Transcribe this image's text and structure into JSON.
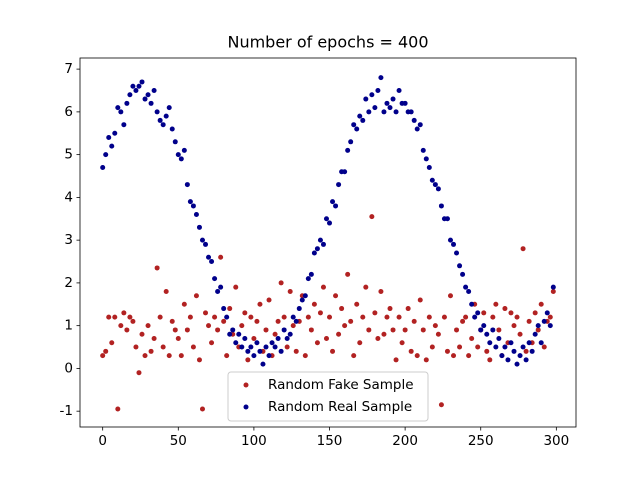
{
  "chart_data": {
    "type": "scatter",
    "title": "Number of epochs = 400",
    "x": [
      0,
      2,
      4,
      6,
      8,
      10,
      12,
      14,
      16,
      18,
      20,
      22,
      24,
      26,
      28,
      30,
      32,
      34,
      36,
      38,
      40,
      42,
      44,
      46,
      48,
      50,
      52,
      54,
      56,
      58,
      60,
      62,
      64,
      66,
      68,
      70,
      72,
      74,
      76,
      78,
      80,
      82,
      84,
      86,
      88,
      90,
      92,
      94,
      96,
      98,
      100,
      102,
      104,
      106,
      108,
      110,
      112,
      114,
      116,
      118,
      120,
      122,
      124,
      126,
      128,
      130,
      132,
      134,
      136,
      138,
      140,
      142,
      144,
      146,
      148,
      150,
      152,
      154,
      156,
      158,
      160,
      162,
      164,
      166,
      168,
      170,
      172,
      174,
      176,
      178,
      180,
      182,
      184,
      186,
      188,
      190,
      192,
      194,
      196,
      198,
      200,
      202,
      204,
      206,
      208,
      210,
      212,
      214,
      216,
      218,
      220,
      222,
      224,
      226,
      228,
      230,
      232,
      234,
      236,
      238,
      240,
      242,
      244,
      246,
      248,
      250,
      252,
      254,
      256,
      258,
      260,
      262,
      264,
      266,
      268,
      270,
      272,
      274,
      276,
      278,
      280,
      282,
      284,
      286,
      288,
      290,
      292,
      294,
      296,
      298
    ],
    "series": [
      {
        "name": "Random Fake Sample",
        "color": "#b22222",
        "values": [
          0.3,
          0.4,
          1.2,
          0.6,
          1.2,
          -0.95,
          1.0,
          1.3,
          0.9,
          1.2,
          1.1,
          0.5,
          -0.1,
          0.8,
          0.3,
          1.0,
          0.4,
          0.7,
          2.35,
          1.2,
          0.5,
          1.8,
          0.3,
          1.1,
          0.9,
          0.7,
          0.3,
          1.5,
          0.9,
          1.2,
          0.5,
          1.7,
          0.2,
          -0.95,
          1.3,
          1.0,
          0.6,
          1.2,
          0.9,
          2.6,
          1.1,
          0.3,
          1.4,
          0.8,
          1.9,
          0.5,
          1.0,
          1.3,
          0.2,
          1.2,
          0.7,
          1.1,
          1.5,
          0.4,
          0.9,
          1.6,
          0.3,
          0.8,
          1.1,
          2.0,
          1.2,
          0.5,
          1.8,
          1.0,
          0.4,
          1.1,
          1.7,
          0.3,
          1.2,
          0.9,
          1.5,
          0.6,
          1.3,
          1.9,
          0.7,
          1.2,
          0.4,
          1.7,
          0.8,
          1.4,
          1.0,
          2.2,
          1.1,
          0.3,
          1.5,
          0.6,
          1.2,
          1.9,
          0.9,
          3.55,
          1.3,
          0.7,
          1.8,
          0.8,
          1.2,
          1.4,
          0.9,
          0.2,
          1.2,
          0.6,
          0.9,
          1.4,
          0.4,
          1.1,
          0.3,
          1.6,
          0.9,
          0.2,
          1.2,
          0.5,
          1.0,
          0.8,
          -0.85,
          1.2,
          0.4,
          1.7,
          0.3,
          0.9,
          0.5,
          1.1,
          1.2,
          0.3,
          0.7,
          1.5,
          0.5,
          0.9,
          1.3,
          0.4,
          0.2,
          1.2,
          1.5,
          0.9,
          0.3,
          1.4,
          0.6,
          1.3,
          1.0,
          1.2,
          0.8,
          2.8,
          0.4,
          1.1,
          0.6,
          1.3,
          0.9,
          1.5,
          0.5,
          1.1,
          1.2,
          1.8
        ]
      },
      {
        "name": "Random Real Sample",
        "color": "#00008b",
        "values": [
          4.7,
          5.0,
          5.4,
          5.2,
          5.5,
          6.1,
          6.0,
          5.7,
          6.2,
          6.4,
          6.6,
          6.5,
          6.6,
          6.7,
          6.3,
          6.4,
          6.2,
          6.5,
          6.0,
          5.8,
          5.7,
          5.9,
          6.1,
          5.6,
          5.3,
          5.0,
          4.9,
          5.1,
          4.3,
          3.9,
          3.8,
          3.6,
          3.3,
          3.0,
          2.9,
          2.6,
          2.5,
          2.1,
          1.8,
          1.9,
          1.4,
          1.2,
          0.8,
          0.9,
          0.6,
          0.8,
          0.5,
          0.7,
          0.4,
          0.5,
          0.3,
          0.6,
          0.4,
          0.1,
          0.5,
          0.3,
          0.6,
          0.5,
          0.7,
          0.4,
          0.9,
          0.7,
          0.8,
          1.2,
          1.1,
          1.4,
          1.6,
          1.7,
          2.1,
          2.2,
          2.7,
          2.8,
          3.0,
          2.9,
          3.5,
          3.4,
          3.9,
          3.8,
          4.3,
          4.6,
          4.6,
          5.1,
          5.3,
          5.7,
          5.6,
          5.9,
          5.8,
          6.3,
          6.0,
          6.4,
          6.1,
          6.5,
          6.8,
          6.0,
          6.2,
          6.1,
          6.3,
          6.0,
          6.5,
          6.2,
          6.2,
          6.0,
          6.0,
          5.8,
          5.6,
          5.7,
          5.1,
          4.9,
          4.7,
          4.4,
          4.3,
          4.2,
          3.8,
          3.5,
          3.5,
          3.0,
          2.9,
          2.7,
          2.4,
          2.2,
          1.9,
          1.8,
          1.5,
          1.2,
          1.3,
          0.9,
          1.0,
          0.8,
          0.6,
          0.9,
          0.5,
          0.7,
          0.3,
          0.5,
          0.2,
          0.6,
          0.4,
          0.1,
          0.3,
          0.5,
          0.2,
          0.6,
          0.4,
          0.8,
          1.0,
          0.6,
          1.1,
          1.3,
          1.0,
          1.9
        ]
      }
    ],
    "xlim": [
      -15,
      313
    ],
    "ylim": [
      -1.37,
      7.26
    ],
    "xticks": [
      0,
      50,
      100,
      150,
      200,
      250,
      300
    ],
    "yticks": [
      -1,
      0,
      1,
      2,
      3,
      4,
      5,
      6,
      7
    ],
    "legend": "lower center"
  }
}
